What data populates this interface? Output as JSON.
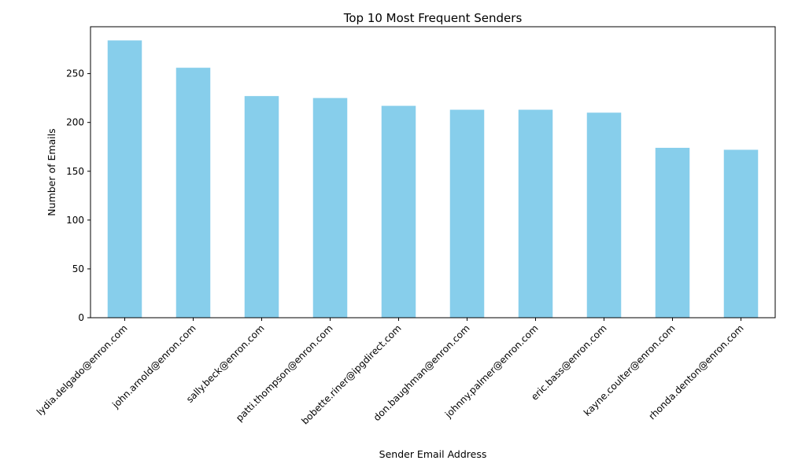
{
  "chart_data": {
    "type": "bar",
    "title": "Top 10 Most Frequent Senders",
    "xlabel": "Sender Email Address",
    "ylabel": "Number of Emails",
    "categories": [
      "lydia.delgado@enron.com",
      "john.arnold@enron.com",
      "sally.beck@enron.com",
      "patti.thompson@enron.com",
      "bobette.riner@ipgdirect.com",
      "don.baughman@enron.com",
      "johnny.palmer@enron.com",
      "eric.bass@enron.com",
      "kayne.coulter@enron.com",
      "rhonda.denton@enron.com"
    ],
    "values": [
      284,
      256,
      227,
      225,
      217,
      213,
      213,
      210,
      174,
      172
    ],
    "ylim": [
      0,
      298
    ],
    "yticks": [
      0,
      50,
      100,
      150,
      200,
      250
    ],
    "grid": false,
    "legend": "none",
    "bar_color": "#87ceeb",
    "x_tick_rotation": "45"
  }
}
